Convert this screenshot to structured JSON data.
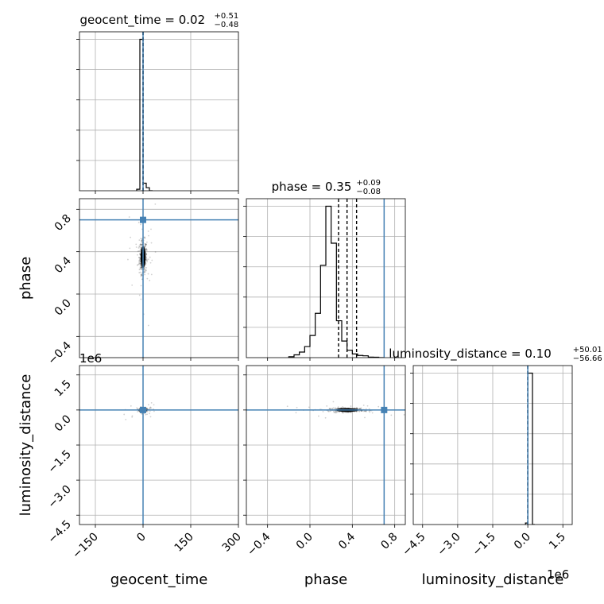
{
  "chart_data": {
    "type": "corner",
    "parameters": [
      "geocent_time",
      "phase",
      "luminosity_distance"
    ],
    "axis_labels": [
      "geocent_time",
      "phase",
      "luminosity_distance"
    ],
    "truths": {
      "geocent_time": 0,
      "phase": 0.7,
      "luminosity_distance": 0
    },
    "truth_color": "#4682b4",
    "ranges": {
      "geocent_time": [
        -200,
        300
      ],
      "phase": [
        -0.6,
        0.9
      ],
      "luminosity_distance": [
        -4900000,
        1900000
      ]
    },
    "grid": true,
    "titles": [
      {
        "param": "geocent_time",
        "name": "geocent_time = 0.02",
        "plus": "+0.51",
        "minus": "−0.48"
      },
      {
        "param": "phase",
        "name": "phase = 0.35",
        "plus": "+0.09",
        "minus": "−0.08"
      },
      {
        "param": "luminosity_distance",
        "name": "luminosity_distance = 0.10",
        "plus": "+50.01",
        "minus": "−56.66"
      }
    ],
    "ticks": {
      "geocent_time": {
        "values": [
          -150,
          0,
          150,
          300
        ],
        "labels": [
          "−150",
          "0",
          "150",
          "300"
        ]
      },
      "phase": {
        "values": [
          -0.4,
          0.0,
          0.4,
          0.8
        ],
        "labels": [
          "−0.4",
          "0.0",
          "0.4",
          "0.8"
        ]
      },
      "luminosity_distance": {
        "values": [
          -4500000,
          -3000000,
          -1500000,
          0,
          1500000
        ],
        "labels": [
          "−4.5",
          "−3.0",
          "−1.5",
          "0.0",
          "1.5"
        ]
      }
    },
    "offset_text": "1e6",
    "histograms": {
      "geocent_time": {
        "bins": [
          -20,
          -10,
          0,
          10,
          20,
          30
        ],
        "counts": [
          0.01,
          1.0,
          0.05,
          0.02,
          0
        ]
      },
      "phase": {
        "bins": [
          -0.2,
          -0.15,
          -0.1,
          -0.05,
          0.0,
          0.05,
          0.1,
          0.15,
          0.2,
          0.25,
          0.3,
          0.35,
          0.4,
          0.45,
          0.5,
          0.55,
          0.6,
          0.65,
          0.7
        ],
        "counts": [
          0.005,
          0.015,
          0.03,
          0.06,
          0.12,
          0.24,
          0.5,
          0.82,
          0.62,
          0.2,
          0.09,
          0.04,
          0.02,
          0.012,
          0.01,
          0.003,
          0.002,
          0
        ]
      },
      "luminosity_distance": {
        "bins": [
          -100000,
          0,
          100000,
          200000,
          300000
        ],
        "counts": [
          0.01,
          1.0,
          1.0,
          0
        ]
      }
    },
    "quantile_lines": {
      "geocent_time": [
        -0.46,
        0.02,
        0.53
      ],
      "phase": [
        0.27,
        0.35,
        0.44
      ],
      "luminosity_distance": [
        -56.56,
        0.1,
        50.11
      ]
    },
    "scatter": {
      "center": {
        "geocent_time": 0,
        "phase": 0.35,
        "luminosity_distance": 0
      },
      "spread": {
        "geocent_time": 6,
        "phase": 0.08,
        "luminosity_distance": 40000
      }
    }
  }
}
